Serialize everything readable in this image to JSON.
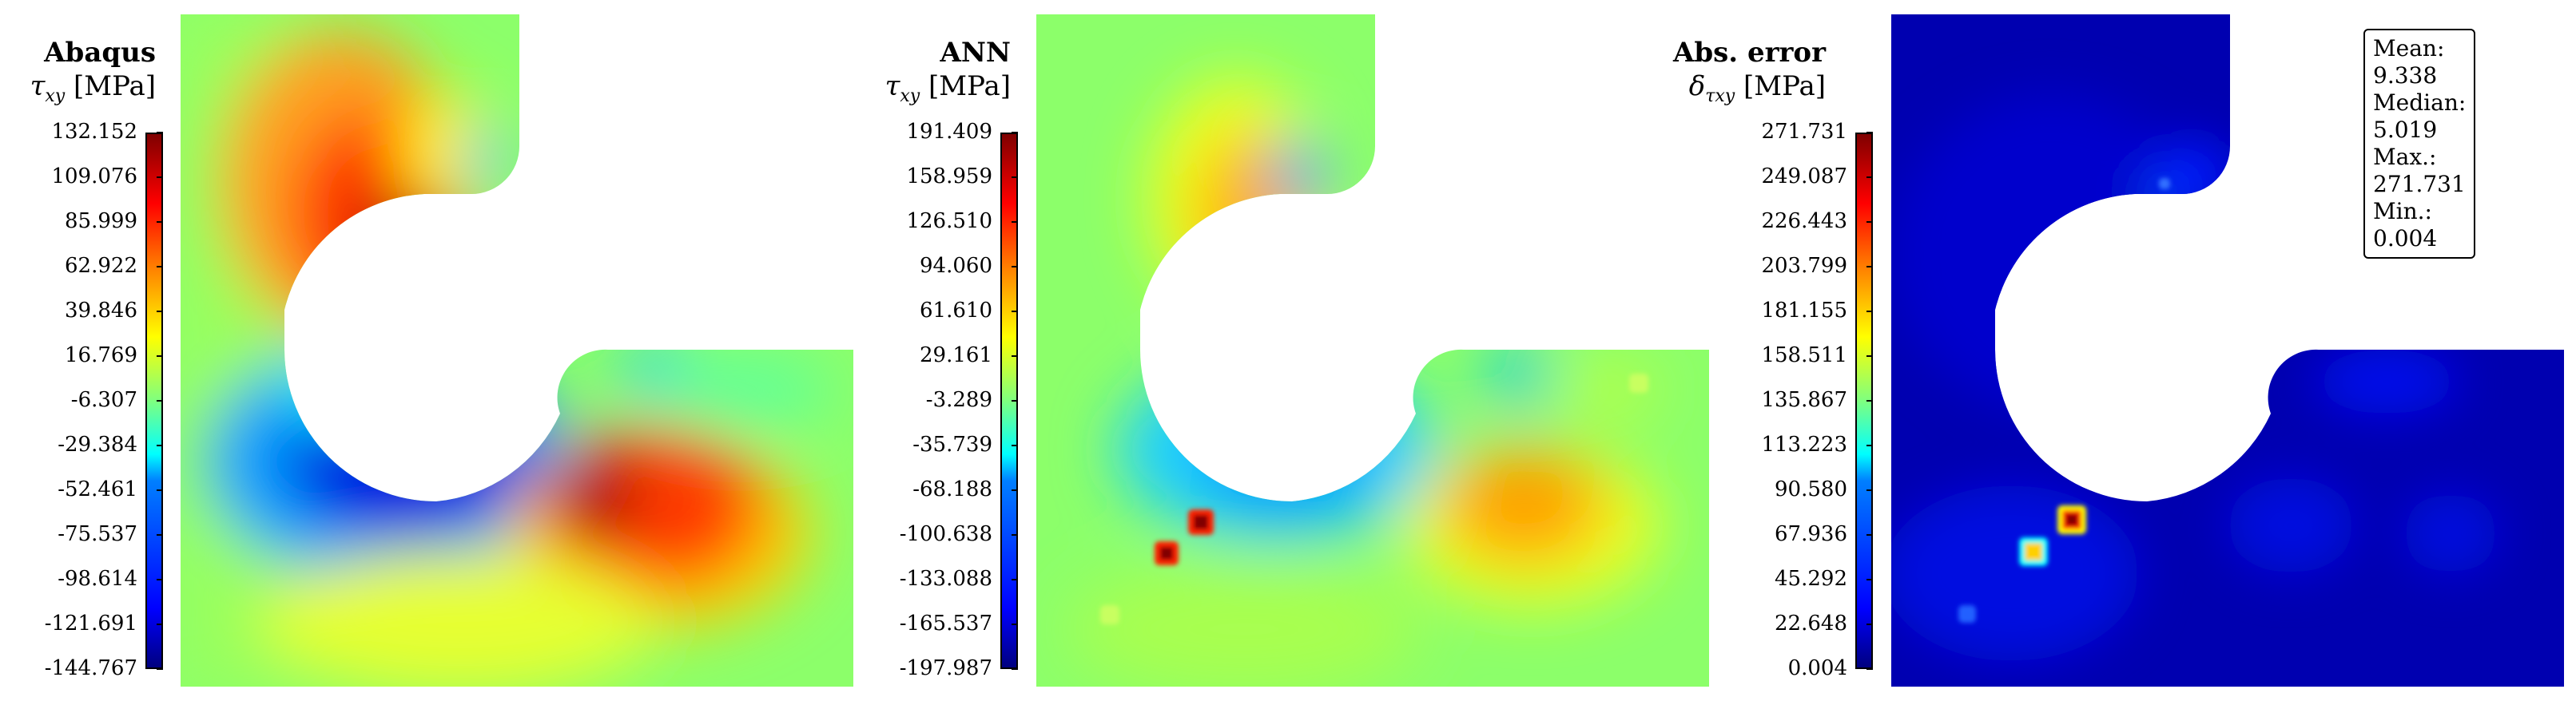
{
  "chart_data": [
    {
      "type": "heatmap",
      "title": "Abaqus",
      "colorbar_label_symbol": "τ",
      "colorbar_label_sub": "xy",
      "colorbar_label_unit": " [MPa]",
      "colormap": "jet",
      "ticks": [
        "132.152",
        "109.076",
        "85.999",
        "62.922",
        "39.846",
        "16.769",
        "-6.307",
        "-29.384",
        "-52.461",
        "-75.537",
        "-98.614",
        "-121.691",
        "-144.767"
      ]
    },
    {
      "type": "heatmap",
      "title": "ANN",
      "colorbar_label_symbol": "τ",
      "colorbar_label_sub": "xy",
      "colorbar_label_unit": " [MPa]",
      "colormap": "jet",
      "ticks": [
        "191.409",
        "158.959",
        "126.510",
        "94.060",
        "61.610",
        "29.161",
        "-3.289",
        "-35.739",
        "-68.188",
        "-100.638",
        "-133.088",
        "-165.537",
        "-197.987"
      ]
    },
    {
      "type": "heatmap",
      "title": "Abs. error",
      "colorbar_label_symbol": "δ",
      "colorbar_label_sub": "τxy",
      "colorbar_label_unit": " [MPa]",
      "colormap": "jet",
      "ticks": [
        "271.731",
        "249.087",
        "226.443",
        "203.799",
        "181.155",
        "158.511",
        "135.867",
        "113.223",
        "90.580",
        "67.936",
        "45.292",
        "22.648",
        "0.004"
      ],
      "stats": {
        "mean": "Mean: 9.338",
        "median": "Median: 5.019",
        "max": "Max.: 271.731",
        "min": "Min.: 0.004"
      }
    }
  ]
}
